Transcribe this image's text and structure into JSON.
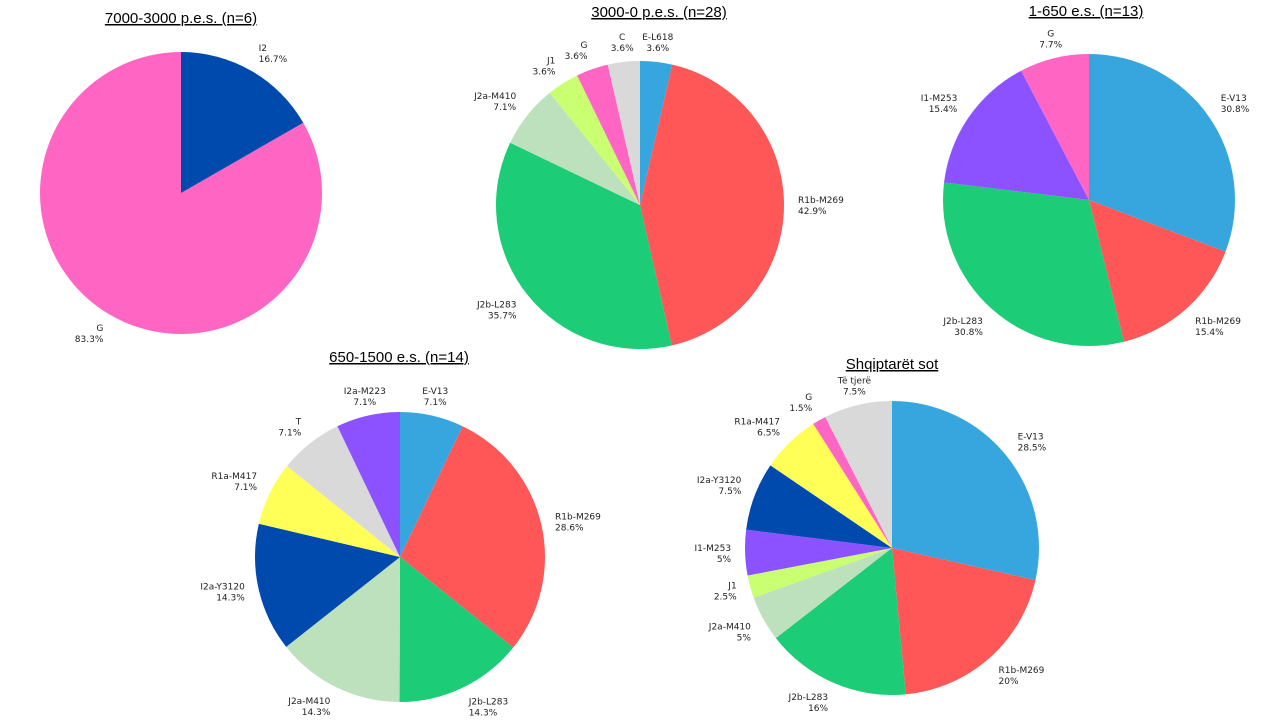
{
  "colors": {
    "G": "#ff66c4",
    "I2": "#004aad",
    "E-L618": "#38a6de",
    "E-V13": "#38a6de",
    "R1b-M269": "#ff5757",
    "J2b-L283": "#1ccc76",
    "J2a-M410": "#bde0bd",
    "J1": "#c9ff70",
    "C": "#d9d9d9",
    "T": "#d9d9d9",
    "Të tjerë": "#d9d9d9",
    "I1-M253": "#8c52ff",
    "I2a-M223": "#8c52ff",
    "R1a-M417": "#ffff57",
    "I2a-Y3120": "#004aad"
  },
  "chart_data": [
    {
      "type": "pie",
      "title": "7000-3000 p.e.s. (n=6)",
      "slices": [
        {
          "label": "G",
          "pct": "83.3%",
          "value": 83.3
        },
        {
          "label": "I2",
          "pct": "16.7%",
          "value": 16.7
        }
      ]
    },
    {
      "type": "pie",
      "title": "3000-0 p.e.s. (n=28)",
      "slices": [
        {
          "label": "E-L618",
          "pct": "3.6%",
          "value": 3.6
        },
        {
          "label": "R1b-M269",
          "pct": "42.9%",
          "value": 42.9
        },
        {
          "label": "J2b-L283",
          "pct": "35.7%",
          "value": 35.7
        },
        {
          "label": "J2a-M410",
          "pct": "7.1%",
          "value": 7.1
        },
        {
          "label": "J1",
          "pct": "3.6%",
          "value": 3.6
        },
        {
          "label": "G",
          "pct": "3.6%",
          "value": 3.6
        },
        {
          "label": "C",
          "pct": "3.6%",
          "value": 3.6
        }
      ]
    },
    {
      "type": "pie",
      "title": "1-650 e.s. (n=13)",
      "slices": [
        {
          "label": "E-V13",
          "pct": "30.8%",
          "value": 30.8
        },
        {
          "label": "R1b-M269",
          "pct": "15.4%",
          "value": 15.4
        },
        {
          "label": "J2b-L283",
          "pct": "30.8%",
          "value": 30.8
        },
        {
          "label": "I1-M253",
          "pct": "15.4%",
          "value": 15.4
        },
        {
          "label": "G",
          "pct": "7.7%",
          "value": 7.7
        }
      ]
    },
    {
      "type": "pie",
      "title": "650-1500 e.s. (n=14)",
      "slices": [
        {
          "label": "E-V13",
          "pct": "7.1%",
          "value": 7.1
        },
        {
          "label": "R1b-M269",
          "pct": "28.6%",
          "value": 28.6
        },
        {
          "label": "J2b-L283",
          "pct": "14.3%",
          "value": 14.3
        },
        {
          "label": "J2a-M410",
          "pct": "14.3%",
          "value": 14.3
        },
        {
          "label": "I2a-Y3120",
          "pct": "14.3%",
          "value": 14.3
        },
        {
          "label": "R1a-M417",
          "pct": "7.1%",
          "value": 7.1
        },
        {
          "label": "T",
          "pct": "7.1%",
          "value": 7.1
        },
        {
          "label": "I2a-M223",
          "pct": "7.1%",
          "value": 7.1
        }
      ]
    },
    {
      "type": "pie",
      "title": "Shqiptarët sot",
      "slices": [
        {
          "label": "E-V13",
          "pct": "28.5%",
          "value": 28.5
        },
        {
          "label": "R1b-M269",
          "pct": "20%",
          "value": 20
        },
        {
          "label": "J2b-L283",
          "pct": "16%",
          "value": 16
        },
        {
          "label": "J2a-M410",
          "pct": "5%",
          "value": 5
        },
        {
          "label": "J1",
          "pct": "2.5%",
          "value": 2.5
        },
        {
          "label": "I1-M253",
          "pct": "5%",
          "value": 5
        },
        {
          "label": "I2a-Y3120",
          "pct": "7.5%",
          "value": 7.5
        },
        {
          "label": "R1a-M417",
          "pct": "6.5%",
          "value": 6.5
        },
        {
          "label": "G",
          "pct": "1.5%",
          "value": 1.5
        },
        {
          "label": "Të tjerë",
          "pct": "7.5%",
          "value": 7.5
        }
      ]
    }
  ]
}
